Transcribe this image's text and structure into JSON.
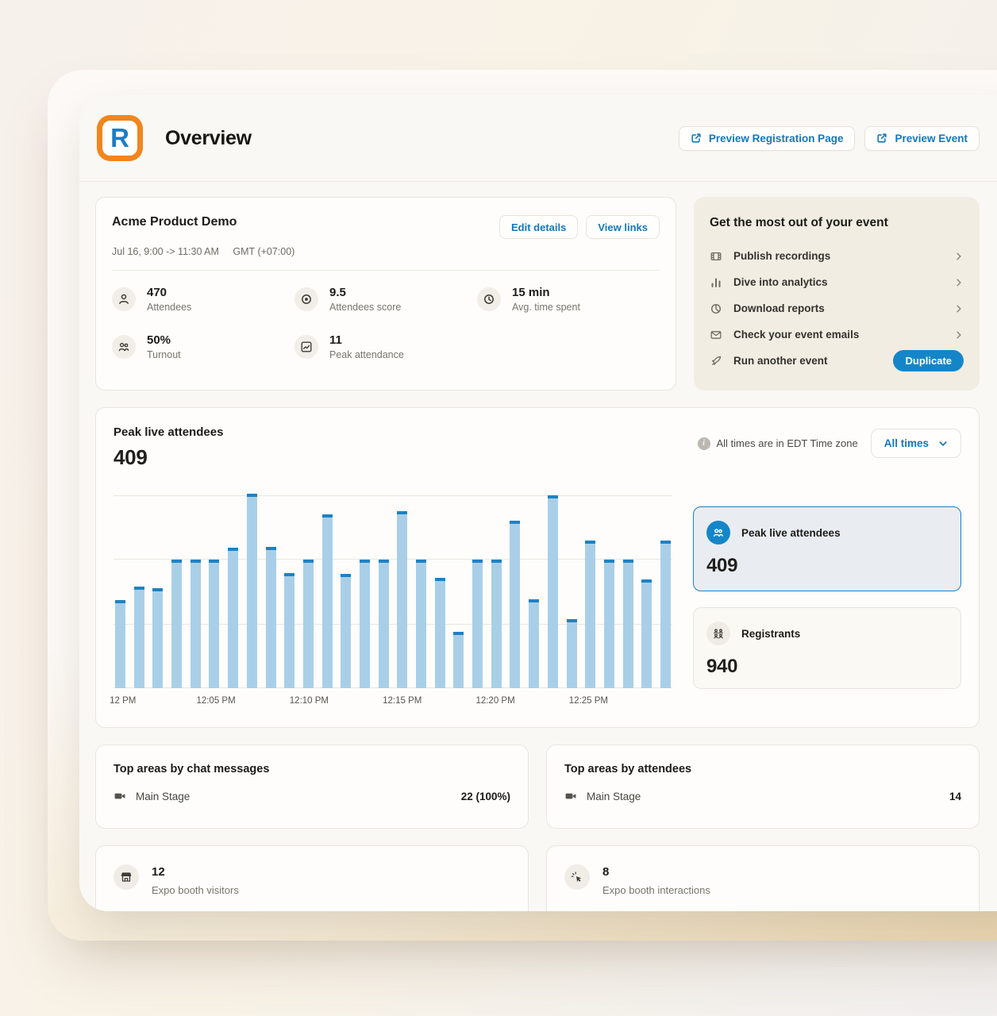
{
  "colors": {
    "accent": "#1278bd",
    "accent_dark": "#1486c8",
    "bar_fill": "#a9cfe8",
    "bar_cap": "#1e82c3",
    "selected_border": "#1b80c3",
    "logo_orange": "#f0861f",
    "logo_blue": "#1e7dc4"
  },
  "header": {
    "logo_letter": "R",
    "title": "Overview",
    "preview_registration_label": "Preview Registration Page",
    "preview_event_label": "Preview Event"
  },
  "event_card": {
    "title": "Acme Product Demo",
    "schedule": "Jul 16, 9:00 -> 11:30 AM",
    "timezone": "GMT (+07:00)",
    "edit_details_label": "Edit details",
    "view_links_label": "View links",
    "stats": [
      {
        "icon": "person-icon",
        "value": "470",
        "label": "Attendees"
      },
      {
        "icon": "target-icon",
        "value": "9.5",
        "label": "Attendees score"
      },
      {
        "icon": "clock-icon",
        "value": "15 min",
        "label": "Avg. time spent"
      },
      {
        "icon": "people-icon",
        "value": "50%",
        "label": "Turnout"
      },
      {
        "icon": "trend-chart-icon",
        "value": "11",
        "label": "Peak attendance"
      }
    ]
  },
  "tips_card": {
    "title": "Get the most out of your event",
    "items": [
      {
        "icon": "recordings-icon",
        "label": "Publish recordings",
        "action": "chevron"
      },
      {
        "icon": "analytics-icon",
        "label": "Dive into analytics",
        "action": "chevron"
      },
      {
        "icon": "reports-icon",
        "label": "Download reports",
        "action": "chevron"
      },
      {
        "icon": "email-icon",
        "label": "Check your event emails",
        "action": "chevron"
      },
      {
        "icon": "rocket-icon",
        "label": "Run another event",
        "action": "button",
        "button_label": "Duplicate"
      }
    ]
  },
  "chart_card": {
    "title": "Peak live attendees",
    "value": "409",
    "timezone_note": "All times are in EDT Time zone",
    "range_selector_label": "All times",
    "metrics": [
      {
        "icon": "people-icon",
        "label": "Peak live attendees",
        "value": "409",
        "selected": true
      },
      {
        "icon": "people-grid-icon",
        "label": "Registrants",
        "value": "940",
        "selected": false
      }
    ]
  },
  "chart_data": {
    "type": "bar",
    "title": "Peak live attendees",
    "xlabel": "",
    "ylabel": "",
    "ylim": [
      0,
      409
    ],
    "grid": true,
    "gridline_values_estimated": [
      409,
      273,
      136
    ],
    "bar_color": "#a9cfe8",
    "cap_color": "#1e82c3",
    "x": [
      "12:00 PM",
      "12:01 PM",
      "12:02 PM",
      "12:03 PM",
      "12:04 PM",
      "12:05 PM",
      "12:06 PM",
      "12:07 PM",
      "12:08 PM",
      "12:09 PM",
      "12:10 PM",
      "12:11 PM",
      "12:12 PM",
      "12:13 PM",
      "12:14 PM",
      "12:15 PM",
      "12:16 PM",
      "12:17 PM",
      "12:18 PM",
      "12:19 PM",
      "12:20 PM",
      "12:21 PM",
      "12:22 PM",
      "12:23 PM",
      "12:24 PM",
      "12:25 PM",
      "12:26 PM",
      "12:27 PM",
      "12:28 PM",
      "12:29 PM"
    ],
    "values": [
      186,
      214,
      211,
      270,
      270,
      270,
      296,
      409,
      297,
      242,
      270,
      365,
      240,
      270,
      270,
      372,
      270,
      232,
      118,
      270,
      270,
      352,
      187,
      406,
      145,
      311,
      270,
      270,
      228,
      311
    ],
    "tick_positions": [
      0,
      5,
      10,
      15,
      20,
      25
    ],
    "tick_labels": [
      "12 PM",
      "12:05 PM",
      "12:10 PM",
      "12:15 PM",
      "12:20 PM",
      "12:25 PM"
    ],
    "legend": []
  },
  "top_areas": [
    {
      "title": "Top areas by chat messages",
      "rows": [
        {
          "icon": "video-camera-icon",
          "label": "Main Stage",
          "value": "22 (100%)"
        }
      ]
    },
    {
      "title": "Top areas by attendees",
      "rows": [
        {
          "icon": "video-camera-icon",
          "label": "Main Stage",
          "value": "14"
        }
      ]
    }
  ],
  "expo_cards": [
    {
      "icon": "booth-icon",
      "value": "12",
      "label": "Expo booth visitors"
    },
    {
      "icon": "cursor-click-icon",
      "value": "8",
      "label": "Expo booth interactions"
    }
  ]
}
